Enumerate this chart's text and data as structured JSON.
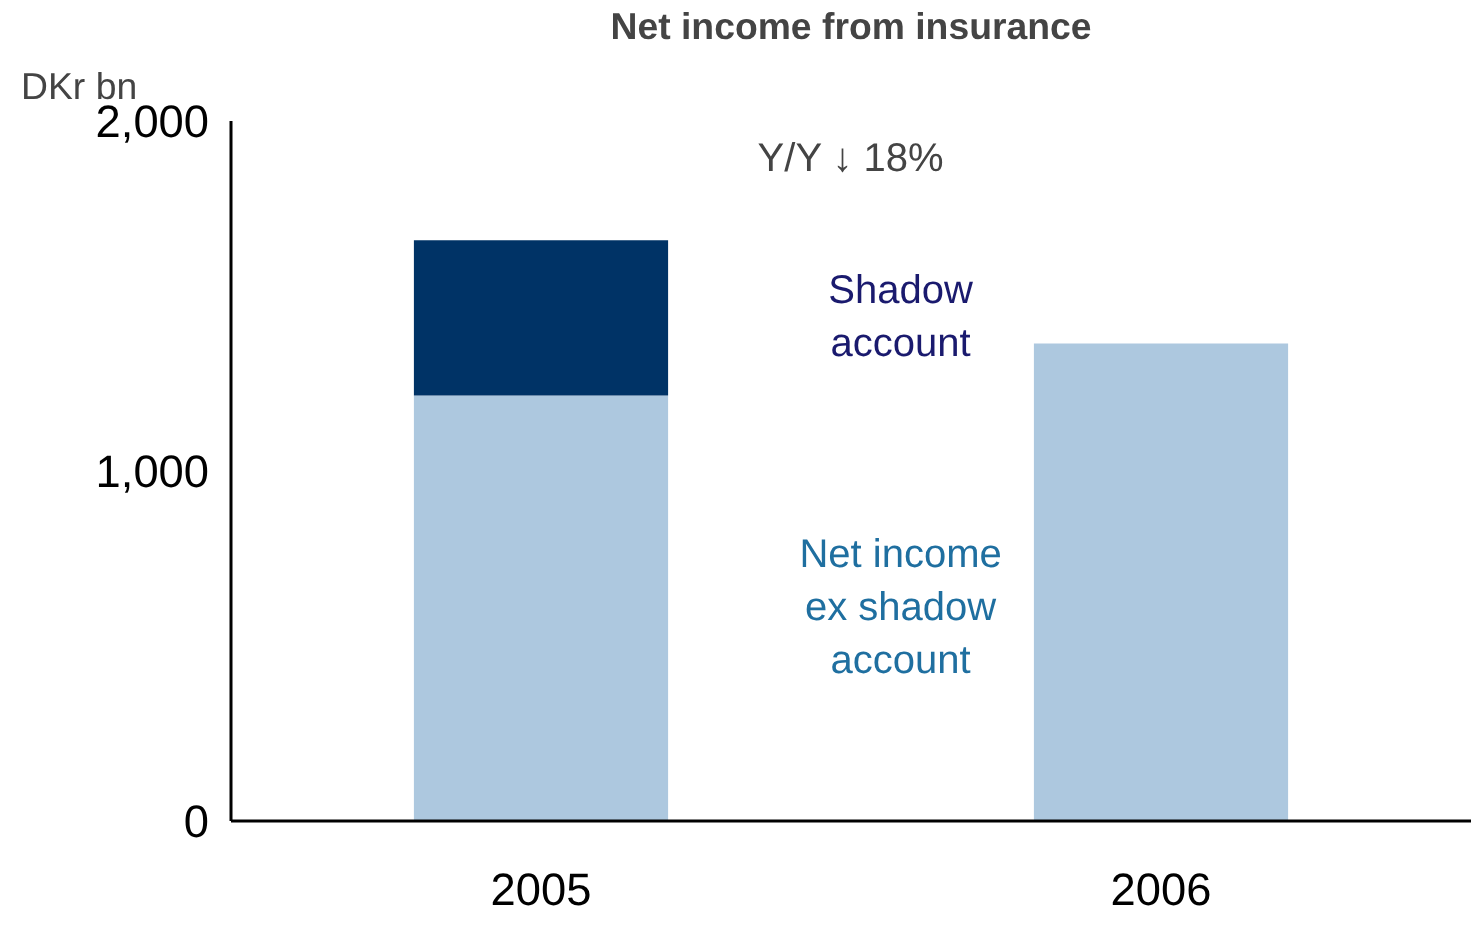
{
  "chart_data": {
    "type": "bar",
    "title": "Net income from insurance",
    "ylabel": "DKr bn",
    "categories": [
      "2005",
      "2006"
    ],
    "stacked": true,
    "series": [
      {
        "name": "Net income ex shadow account",
        "color": "#adc8df",
        "values": [
          1216,
          1364
        ]
      },
      {
        "name": "Shadow account",
        "color": "#003366",
        "values": [
          443,
          null
        ]
      }
    ],
    "ylim": [
      0,
      2000
    ],
    "yticks": [
      {
        "value": 0,
        "label": "0"
      },
      {
        "value": 1000,
        "label": "1,000"
      },
      {
        "value": 2000,
        "label": "2,000"
      }
    ],
    "grid": false,
    "legend": false,
    "annotations": [
      "Y/Y ↓ 18%"
    ]
  }
}
